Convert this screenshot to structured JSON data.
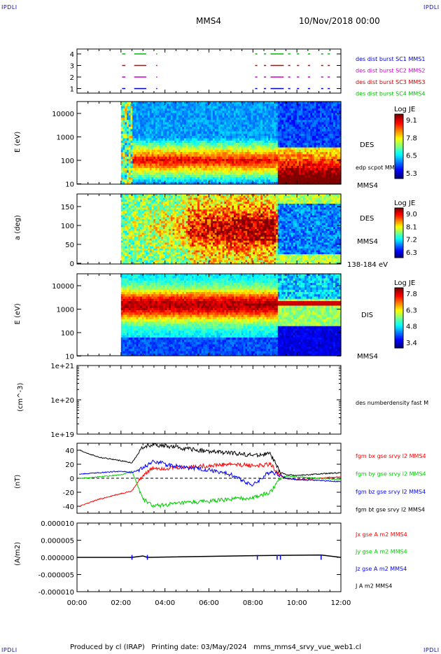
{
  "header": {
    "logo": "IPDLI",
    "spacecraft": "MMS4",
    "date": "10/Nov/2018 00:00"
  },
  "footer": {
    "text": "Produced by cl (IRAP)   Printing date: 03/May/2024   mms_mms4_srvy_vue_web1.cl"
  },
  "time_axis": {
    "ticks": [
      "00:00",
      "02:00",
      "04:00",
      "06:00",
      "08:00",
      "10:00",
      "12:00"
    ],
    "range_hours": [
      0,
      12
    ],
    "data_start_hours": 2.0
  },
  "colors": {
    "bx": "#ff0000",
    "by": "#00cc00",
    "bz": "#0000ff",
    "bt": "#000000",
    "mms1": "#0000cc",
    "mms2": "#cc00cc",
    "mms3": "#cc0000",
    "mms4": "#00bb00"
  },
  "chart_data": [
    {
      "type": "event",
      "name": "burst_availability",
      "yticks": [
        "4",
        "3",
        "2",
        "1"
      ],
      "legend": [
        {
          "label": "des dist burst SC1 MMS1",
          "color": "#0000cc"
        },
        {
          "label": "des dist burst SC2 MMS2",
          "color": "#cc00cc"
        },
        {
          "label": "des dist burst SC3 MMS3",
          "color": "#cc0000"
        },
        {
          "label": "des dist burst SC4 MMS4",
          "color": "#00bb00"
        }
      ],
      "intervals_hours": [
        [
          2.05,
          2.2
        ],
        [
          2.6,
          3.15
        ],
        [
          3.6,
          3.65
        ],
        [
          8.1,
          8.2
        ],
        [
          8.5,
          8.6
        ],
        [
          8.8,
          9.4
        ],
        [
          9.6,
          9.7
        ],
        [
          10.0,
          10.1
        ],
        [
          10.5,
          10.6
        ],
        [
          11.1,
          11.2
        ],
        [
          11.4,
          11.5
        ]
      ]
    },
    {
      "type": "heatmap",
      "name": "des_energy_spectrogram",
      "ylabel": "E (eV)",
      "yticks": [
        "10000",
        "1000",
        "100",
        "10"
      ],
      "ylim": [
        10,
        30000
      ],
      "label": "DES",
      "overlay_label": "edp scpot MMS4",
      "side_label": "MMS4",
      "colorbar": {
        "title": "Log JE",
        "ticks": [
          "9.1",
          "7.8",
          "6.5",
          "5.3"
        ],
        "range": [
          5.3,
          9.1
        ]
      }
    },
    {
      "type": "heatmap",
      "name": "des_pitch_angle",
      "ylabel": "a (deg)",
      "yticks": [
        "150",
        "100",
        "50",
        "0"
      ],
      "ylim": [
        0,
        180
      ],
      "label": "DES",
      "side_label": "MMS4",
      "energy_label": "138-184 eV",
      "colorbar": {
        "title": "Log JE",
        "ticks": [
          "9.0",
          "8.1",
          "7.2",
          "6.3"
        ],
        "range": [
          6.3,
          9.0
        ]
      }
    },
    {
      "type": "heatmap",
      "name": "dis_energy_spectrogram",
      "ylabel": "E (eV)",
      "yticks": [
        "10000",
        "1000",
        "100",
        "10"
      ],
      "ylim": [
        10,
        30000
      ],
      "label": "DIS",
      "side_label": "MMS4",
      "colorbar": {
        "title": "Log JE",
        "ticks": [
          "7.8",
          "6.3",
          "4.8",
          "3.4"
        ],
        "range": [
          3.4,
          7.8
        ]
      }
    },
    {
      "type": "line",
      "name": "density",
      "ylabel": "(cm^-3)",
      "yticks": [
        "1e+21",
        "1e+20",
        "1e+19"
      ],
      "legend": [
        {
          "label": "des numberdensity fast M",
          "color": "#000000"
        }
      ],
      "series": []
    },
    {
      "type": "line",
      "name": "magnetic_field",
      "ylabel": "(nT)",
      "yticks": [
        "40",
        "20",
        "0",
        "-20",
        "-40"
      ],
      "ylim": [
        -50,
        50
      ],
      "legend": [
        {
          "label": "fgm bx gse srvy l2 MMS4",
          "color": "#ff0000"
        },
        {
          "label": "fgm by gse srvy l2 MMS4",
          "color": "#00cc00"
        },
        {
          "label": "fgm bz gse srvy l2 MMS4",
          "color": "#0000ff"
        },
        {
          "label": "fgm bt gse srvy l2 MMS4",
          "color": "#000000"
        }
      ],
      "series": [
        {
          "name": "fgm bx gse srvy l2 MMS4",
          "x": [
            0.1,
            1.0,
            2.0,
            2.5,
            3.0,
            3.5,
            4.0,
            5.0,
            6.0,
            7.0,
            8.0,
            8.8,
            9.2,
            9.5,
            10.0,
            11.0,
            12.0
          ],
          "y": [
            -40,
            -30,
            -22,
            -18,
            5,
            15,
            14,
            16,
            18,
            20,
            18,
            20,
            5,
            0,
            -2,
            0,
            2
          ]
        },
        {
          "name": "fgm by gse srvy l2 MMS4",
          "x": [
            0.1,
            1.0,
            2.0,
            2.5,
            3.0,
            3.5,
            4.0,
            5.0,
            6.0,
            7.0,
            8.0,
            8.8,
            9.2,
            9.5,
            10.0,
            11.0,
            12.0
          ],
          "y": [
            0,
            2,
            5,
            10,
            -30,
            -40,
            -38,
            -35,
            -33,
            -30,
            -28,
            -20,
            0,
            3,
            2,
            0,
            -2
          ]
        },
        {
          "name": "fgm bz gse srvy l2 MMS4",
          "x": [
            0.1,
            1.0,
            2.0,
            2.5,
            3.0,
            3.5,
            4.0,
            5.0,
            6.0,
            7.0,
            8.0,
            8.8,
            9.2,
            9.5,
            10.0,
            11.0,
            12.0
          ],
          "y": [
            6,
            8,
            10,
            8,
            15,
            25,
            20,
            15,
            12,
            5,
            -10,
            10,
            5,
            0,
            -2,
            -3,
            -5
          ]
        },
        {
          "name": "fgm bt gse srvy l2 MMS4",
          "x": [
            0.1,
            1.0,
            2.0,
            2.5,
            3.0,
            3.5,
            4.0,
            5.0,
            6.0,
            7.0,
            8.0,
            8.8,
            9.2,
            9.5,
            10.0,
            11.0,
            12.0
          ],
          "y": [
            40,
            30,
            25,
            22,
            45,
            48,
            46,
            42,
            38,
            36,
            33,
            35,
            10,
            5,
            4,
            6,
            8
          ]
        }
      ]
    },
    {
      "type": "line",
      "name": "current_density",
      "ylabel": "(A/m2)",
      "yticks": [
        "0.000010",
        "0.000005",
        "0.000000",
        "-0.000005",
        "-0.000010"
      ],
      "ylim": [
        -1e-05,
        1e-05
      ],
      "legend": [
        {
          "label": "Jx gse A m2 MMS4",
          "color": "#ff0000"
        },
        {
          "label": "Jy gse A m2 MMS4",
          "color": "#00cc00"
        },
        {
          "label": "Jz gse A m2 MMS4",
          "color": "#0000ff"
        },
        {
          "label": "J A m2 MMS4",
          "color": "#000000"
        }
      ],
      "series": [
        {
          "name": "J A m2 MMS4",
          "x": [
            0.0,
            2.5,
            3.0,
            3.2,
            8.2,
            9.2,
            11.1,
            12.0
          ],
          "y": [
            0.0,
            0.0,
            4e-07,
            0.0,
            5e-07,
            6e-07,
            7e-07,
            0.0
          ]
        }
      ]
    }
  ]
}
